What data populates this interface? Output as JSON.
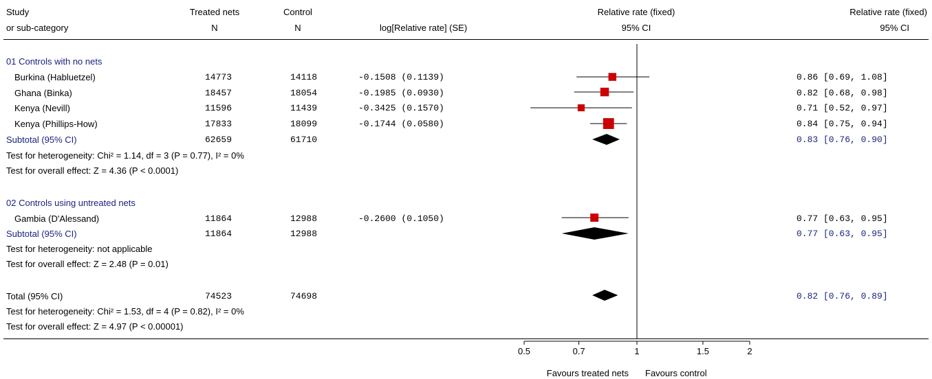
{
  "header": {
    "study_l1": "Study",
    "study_l2": "or sub-category",
    "treated_l1": "Treated nets",
    "treated_l2": "N",
    "control_l1": "Control",
    "control_l2": "N",
    "log_rr": "log[Relative rate] (SE)",
    "plot_l1": "Relative rate (fixed)",
    "plot_l2": "95% CI",
    "rr_l1": "Relative rate (fixed)",
    "rr_l2": "95% CI"
  },
  "groups": [
    {
      "title": "01 Controls with no nets",
      "studies": [
        {
          "name": "Burkina (Habluetzel)",
          "treated": "14773",
          "control": "14118",
          "log_se": "-0.1508 (0.1139)",
          "ci_text": "0.86 [0.69, 1.08]"
        },
        {
          "name": "Ghana (Binka)",
          "treated": "18457",
          "control": "18054",
          "log_se": "-0.1985 (0.0930)",
          "ci_text": "0.82 [0.68, 0.98]"
        },
        {
          "name": "Kenya (Nevill)",
          "treated": "11596",
          "control": "11439",
          "log_se": "-0.3425 (0.1570)",
          "ci_text": "0.71 [0.52, 0.97]"
        },
        {
          "name": "Kenya (Phillips-How)",
          "treated": "17833",
          "control": "18099",
          "log_se": "-0.1744 (0.0580)",
          "ci_text": "0.84 [0.75, 0.94]"
        }
      ],
      "subtotal": {
        "label": "Subtotal (95% CI)",
        "treated": "62659",
        "control": "61710",
        "ci_text": "0.83 [0.76, 0.90]"
      },
      "heterogeneity": "Test for heterogeneity: Chi² = 1.14, df = 3 (P = 0.77), I² = 0%",
      "overall": "Test for overall effect: Z = 4.36 (P < 0.0001)"
    },
    {
      "title": "02 Controls using untreated nets",
      "studies": [
        {
          "name": "Gambia (D'Alessand)",
          "treated": "11864",
          "control": "12988",
          "log_se": "-0.2600 (0.1050)",
          "ci_text": "0.77 [0.63, 0.95]"
        }
      ],
      "subtotal": {
        "label": "Subtotal (95% CI)",
        "treated": "11864",
        "control": "12988",
        "ci_text": "0.77 [0.63, 0.95]"
      },
      "heterogeneity": "Test for heterogeneity: not applicable",
      "overall": "Test for overall effect: Z = 2.48 (P = 0.01)"
    }
  ],
  "total": {
    "label": "Total (95% CI)",
    "treated": "74523",
    "control": "74698",
    "ci_text": "0.82 [0.76, 0.89]",
    "heterogeneity": "Test for heterogeneity: Chi² = 1.53, df = 4 (P = 0.82), I² = 0%",
    "overall": "Test for overall effect: Z = 4.97 (P < 0.00001)"
  },
  "axis": {
    "ticks": [
      "0.5",
      "0.7",
      "1",
      "1.5",
      "2"
    ],
    "favours_left": "Favours treated nets",
    "favours_right": "Favours control"
  },
  "colors": {
    "marker": "#cc0000",
    "diamond": "#000000",
    "group_text": "#1a237e"
  },
  "chart_data": {
    "type": "scatter",
    "scale": "log",
    "xlim": [
      0.5,
      2
    ],
    "x_ticks": [
      0.5,
      0.7,
      1,
      1.5,
      2
    ],
    "reference_line": 1,
    "studies": [
      {
        "name": "Burkina (Habluetzel)",
        "rr": 0.86,
        "lo": 0.69,
        "hi": 1.08,
        "weight": 0.14
      },
      {
        "name": "Ghana (Binka)",
        "rr": 0.82,
        "lo": 0.68,
        "hi": 0.98,
        "weight": 0.21
      },
      {
        "name": "Kenya (Nevill)",
        "rr": 0.71,
        "lo": 0.52,
        "hi": 0.97,
        "weight": 0.07
      },
      {
        "name": "Kenya (Phillips-How)",
        "rr": 0.84,
        "lo": 0.75,
        "hi": 0.94,
        "weight": 0.54
      },
      {
        "name": "Gambia (D'Alessand)",
        "rr": 0.77,
        "lo": 0.63,
        "hi": 0.95,
        "weight": 0.17
      }
    ],
    "pooled": [
      {
        "name": "Subtotal 01",
        "rr": 0.83,
        "lo": 0.76,
        "hi": 0.9
      },
      {
        "name": "Subtotal 02",
        "rr": 0.77,
        "lo": 0.63,
        "hi": 0.95
      },
      {
        "name": "Total",
        "rr": 0.82,
        "lo": 0.76,
        "hi": 0.89
      }
    ]
  }
}
